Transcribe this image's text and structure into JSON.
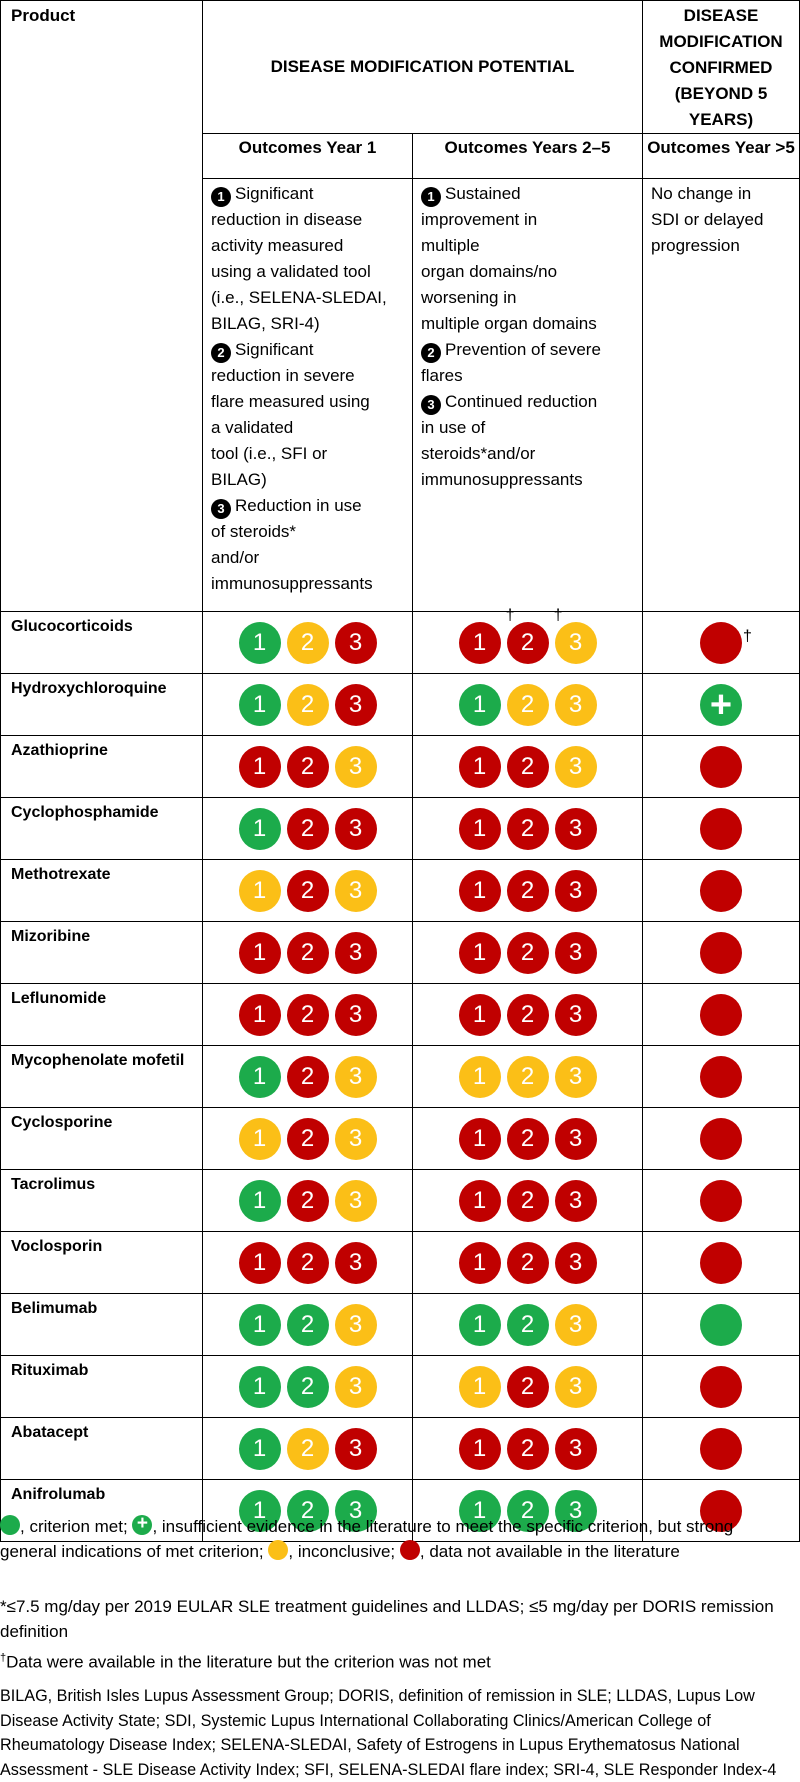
{
  "header": {
    "product": "Product",
    "potential": "DISEASE MODIFICATION POTENTIAL",
    "confirmed": "DISEASE MODIFICATION CONFIRMED (BEYOND 5 YEARS)",
    "year1": "Outcomes Year 1",
    "years25": "Outcomes Years 2–5",
    "year5plus": "Outcomes Year >5"
  },
  "criteria": {
    "year1": [
      {
        "num": "1",
        "lines": [
          "Significant",
          "reduction in disease",
          "activity measured",
          "using a validated tool",
          "(i.e., SELENA-SLEDAI,",
          "BILAG, SRI-4)"
        ]
      },
      {
        "num": "2",
        "lines": [
          "Significant",
          "reduction in severe",
          "flare measured using",
          "a validated",
          "tool (i.e., SFI or",
          "BILAG)"
        ]
      },
      {
        "num": "3",
        "lines": [
          "Reduction in use",
          "of steroids*",
          "and/or",
          "immunosuppressants"
        ]
      }
    ],
    "years25": [
      {
        "num": "1",
        "lines": [
          "Sustained",
          "improvement in",
          "multiple",
          "organ domains/no",
          "worsening in",
          "multiple organ domains"
        ]
      },
      {
        "num": "2",
        "lines": [
          "Prevention of severe",
          "flares"
        ]
      },
      {
        "num": "3",
        "lines": [
          "Continued reduction",
          "in use of",
          "steroids*and/or",
          "immunosuppressants"
        ]
      }
    ],
    "year5plus": [
      "No change in",
      "SDI or delayed",
      "progression"
    ]
  },
  "drugs": [
    {
      "name": "Glucocorticoids",
      "y1": [
        [
          "1",
          "green"
        ],
        [
          "2",
          "yellow"
        ],
        [
          "3",
          "red"
        ]
      ],
      "y25": [
        [
          "1",
          "red",
          "†"
        ],
        [
          "2",
          "red",
          "†"
        ],
        [
          "3",
          "yellow"
        ]
      ],
      "y5": "red",
      "y5_dagger": "†"
    },
    {
      "name": "Hydroxychloroquine",
      "y1": [
        [
          "1",
          "green"
        ],
        [
          "2",
          "yellow"
        ],
        [
          "3",
          "red"
        ]
      ],
      "y25": [
        [
          "1",
          "green"
        ],
        [
          "2",
          "yellow"
        ],
        [
          "3",
          "yellow"
        ]
      ],
      "y5": "green-plus"
    },
    {
      "name": "Azathioprine",
      "y1": [
        [
          "1",
          "red"
        ],
        [
          "2",
          "red"
        ],
        [
          "3",
          "yellow"
        ]
      ],
      "y25": [
        [
          "1",
          "red"
        ],
        [
          "2",
          "red"
        ],
        [
          "3",
          "yellow"
        ]
      ],
      "y5": "red"
    },
    {
      "name": "Cyclophosphamide",
      "y1": [
        [
          "1",
          "green"
        ],
        [
          "2",
          "red"
        ],
        [
          "3",
          "red"
        ]
      ],
      "y25": [
        [
          "1",
          "red"
        ],
        [
          "2",
          "red"
        ],
        [
          "3",
          "red"
        ]
      ],
      "y5": "red"
    },
    {
      "name": "Methotrexate",
      "y1": [
        [
          "1",
          "yellow"
        ],
        [
          "2",
          "red"
        ],
        [
          "3",
          "yellow"
        ]
      ],
      "y25": [
        [
          "1",
          "red"
        ],
        [
          "2",
          "red"
        ],
        [
          "3",
          "red"
        ]
      ],
      "y5": "red"
    },
    {
      "name": "Mizoribine",
      "y1": [
        [
          "1",
          "red"
        ],
        [
          "2",
          "red"
        ],
        [
          "3",
          "red"
        ]
      ],
      "y25": [
        [
          "1",
          "red"
        ],
        [
          "2",
          "red"
        ],
        [
          "3",
          "red"
        ]
      ],
      "y5": "red"
    },
    {
      "name": "Leflunomide",
      "y1": [
        [
          "1",
          "red"
        ],
        [
          "2",
          "red"
        ],
        [
          "3",
          "red"
        ]
      ],
      "y25": [
        [
          "1",
          "red"
        ],
        [
          "2",
          "red"
        ],
        [
          "3",
          "red"
        ]
      ],
      "y5": "red"
    },
    {
      "name": "Mycophenolate mofetil",
      "y1": [
        [
          "1",
          "green"
        ],
        [
          "2",
          "red"
        ],
        [
          "3",
          "yellow"
        ]
      ],
      "y25": [
        [
          "1",
          "yellow"
        ],
        [
          "2",
          "yellow"
        ],
        [
          "3",
          "yellow"
        ]
      ],
      "y5": "red"
    },
    {
      "name": "Cyclosporine",
      "y1": [
        [
          "1",
          "yellow"
        ],
        [
          "2",
          "red"
        ],
        [
          "3",
          "yellow"
        ]
      ],
      "y25": [
        [
          "1",
          "red"
        ],
        [
          "2",
          "red"
        ],
        [
          "3",
          "red"
        ]
      ],
      "y5": "red"
    },
    {
      "name": "Tacrolimus",
      "y1": [
        [
          "1",
          "green"
        ],
        [
          "2",
          "red"
        ],
        [
          "3",
          "yellow"
        ]
      ],
      "y25": [
        [
          "1",
          "red"
        ],
        [
          "2",
          "red"
        ],
        [
          "3",
          "red"
        ]
      ],
      "y5": "red"
    },
    {
      "name": "Voclosporin",
      "y1": [
        [
          "1",
          "red"
        ],
        [
          "2",
          "red"
        ],
        [
          "3",
          "red"
        ]
      ],
      "y25": [
        [
          "1",
          "red"
        ],
        [
          "2",
          "red"
        ],
        [
          "3",
          "red"
        ]
      ],
      "y5": "red"
    },
    {
      "name": "Belimumab",
      "y1": [
        [
          "1",
          "green"
        ],
        [
          "2",
          "green"
        ],
        [
          "3",
          "yellow"
        ]
      ],
      "y25": [
        [
          "1",
          "green"
        ],
        [
          "2",
          "green"
        ],
        [
          "3",
          "yellow"
        ]
      ],
      "y5": "green"
    },
    {
      "name": "Rituximab",
      "y1": [
        [
          "1",
          "green"
        ],
        [
          "2",
          "green"
        ],
        [
          "3",
          "yellow"
        ]
      ],
      "y25": [
        [
          "1",
          "yellow"
        ],
        [
          "2",
          "red"
        ],
        [
          "3",
          "yellow"
        ]
      ],
      "y5": "red"
    },
    {
      "name": "Abatacept",
      "y1": [
        [
          "1",
          "green"
        ],
        [
          "2",
          "yellow"
        ],
        [
          "3",
          "red"
        ]
      ],
      "y25": [
        [
          "1",
          "red"
        ],
        [
          "2",
          "red"
        ],
        [
          "3",
          "red"
        ]
      ],
      "y5": "red"
    },
    {
      "name": "Anifrolumab",
      "y1": [
        [
          "1",
          "green"
        ],
        [
          "2",
          "green"
        ],
        [
          "3",
          "green"
        ]
      ],
      "y25": [
        [
          "1",
          "green"
        ],
        [
          "2",
          "green"
        ],
        [
          "3",
          "green"
        ]
      ],
      "y5": "red"
    }
  ],
  "legend": {
    "met": ", criterion met;",
    "insufficient": ", insufficient evidence in the literature to meet the specific criterion, but strong general indications of met criterion;",
    "inconclusive": ", inconclusive;",
    "na": ",  data not available in the literature"
  },
  "footnotes": {
    "steroid": "*≤7.5 mg/day per 2019 EULAR SLE treatment guidelines and LLDAS; ≤5 mg/day per DORIS remission definition",
    "dagger_mark": "†",
    "dagger": "Data were available in the literature but the criterion was not met",
    "abbreviations": "BILAG, British Isles Lupus Assessment Group; DORIS, definition of remission in SLE; LLDAS, Lupus Low Disease Activity State; SDI, Systemic Lupus International Collaborating Clinics/American College of Rheumatology Disease Index; SELENA-SLEDAI, Safety of Estrogens in Lupus Erythematosus National Assessment - SLE Disease Activity Index; SFI, SELENA-SLEDAI flare index; SRI-4, SLE Responder Index-4"
  },
  "colors": {
    "green": "#1cab4b",
    "yellow": "#fbbf17",
    "red": "#c00000"
  },
  "icons": {
    "numbered": "black-circled-number-icon",
    "status": "status-circle-icon",
    "plus": "plus-icon"
  }
}
